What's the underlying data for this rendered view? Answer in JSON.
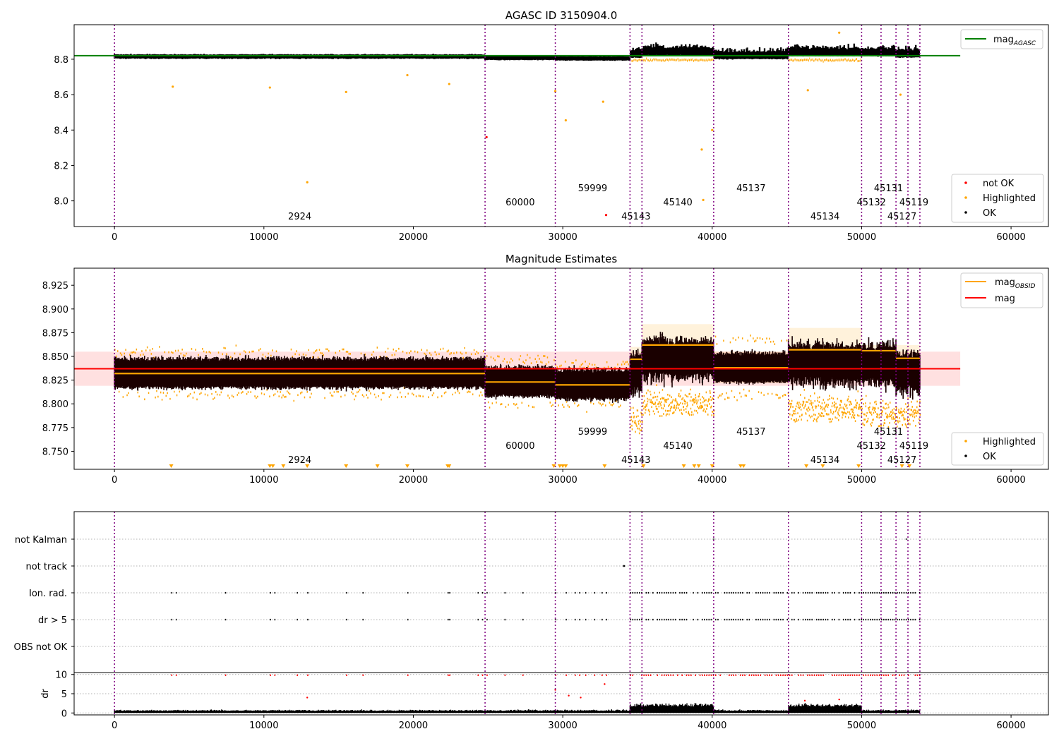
{
  "chart_data": [
    {
      "type": "scatter",
      "title": "AGASC ID 3150904.0",
      "xlim": [
        -2700,
        62500
      ],
      "ylim": [
        7.855,
        8.995
      ],
      "xticks": [
        0,
        10000,
        20000,
        30000,
        40000,
        50000,
        60000
      ],
      "yticks": [
        8.0,
        8.2,
        8.4,
        8.6,
        8.8
      ],
      "ytick_labels": [
        "8.0",
        "8.2",
        "8.4",
        "8.6",
        "8.8"
      ],
      "reference_line": {
        "label": "mag",
        "subscript": "AGASC",
        "value": 8.82,
        "x_range": [
          -2700,
          56600
        ],
        "color": "#008000"
      },
      "series": [
        {
          "name": "not OK",
          "color": "#ff0000"
        },
        {
          "name": "Highlighted",
          "color": "#ffa500"
        },
        {
          "name": "OK",
          "color": "#000000"
        }
      ],
      "legend_upper": "upper right",
      "legend_lower": "lower right",
      "highlighted_outliers": [
        [
          3900,
          8.645
        ],
        [
          10400,
          8.64
        ],
        [
          12900,
          8.105
        ],
        [
          15500,
          8.615
        ],
        [
          19600,
          8.71
        ],
        [
          22400,
          8.66
        ],
        [
          29500,
          8.62
        ],
        [
          30200,
          8.455
        ],
        [
          32700,
          8.56
        ],
        [
          39300,
          8.29
        ],
        [
          39400,
          8.005
        ],
        [
          40000,
          8.4
        ],
        [
          46400,
          8.625
        ],
        [
          48500,
          8.95
        ],
        [
          52600,
          8.6
        ]
      ],
      "not_ok_points": [
        [
          24900,
          8.36
        ],
        [
          32900,
          7.92
        ]
      ]
    },
    {
      "type": "scatter",
      "title": "Magnitude Estimates",
      "xlim": [
        -2700,
        62500
      ],
      "ylim": [
        8.731,
        8.943
      ],
      "xticks": [
        0,
        10000,
        20000,
        30000,
        40000,
        50000,
        60000
      ],
      "yticks": [
        8.75,
        8.775,
        8.8,
        8.825,
        8.85,
        8.875,
        8.9,
        8.925
      ],
      "ytick_labels": [
        "8.750",
        "8.775",
        "8.800",
        "8.825",
        "8.850",
        "8.875",
        "8.900",
        "8.925"
      ],
      "mean_mag": {
        "label": "mag",
        "value": 8.837,
        "band": [
          8.819,
          8.855
        ],
        "x_range": [
          -2700,
          56600
        ],
        "color": "#ff0000"
      },
      "obsid_mag_label": "mag",
      "obsid_mag_subscript": "OBSID",
      "series": [
        {
          "name": "Highlighted",
          "color": "#ffa500"
        },
        {
          "name": "OK",
          "color": "#000000"
        }
      ],
      "segments": [
        {
          "x0": 0,
          "x1": 24800,
          "mag": 8.832,
          "lo": 8.822,
          "hi": 8.842
        },
        {
          "x0": 24800,
          "x1": 29500,
          "mag": 8.823,
          "lo": 8.812,
          "hi": 8.835
        },
        {
          "x0": 29500,
          "x1": 34500,
          "mag": 8.82,
          "lo": 8.81,
          "hi": 8.83
        },
        {
          "x0": 34500,
          "x1": 35300,
          "mag": 8.847,
          "lo": 8.82,
          "hi": 8.86
        },
        {
          "x0": 35300,
          "x1": 40100,
          "mag": 8.862,
          "lo": 8.84,
          "hi": 8.884
        },
        {
          "x0": 40100,
          "x1": 45100,
          "mag": 8.838,
          "lo": 8.822,
          "hi": 8.855
        },
        {
          "x0": 45100,
          "x1": 50000,
          "mag": 8.857,
          "lo": 8.835,
          "hi": 8.88
        },
        {
          "x0": 50000,
          "x1": 52300,
          "mag": 8.856,
          "lo": 8.83,
          "hi": 8.862
        },
        {
          "x0": 52300,
          "x1": 53900,
          "mag": 8.848,
          "lo": 8.83,
          "hi": 8.862
        }
      ],
      "clipped_markers_x": [
        3800,
        10400,
        10600,
        11300,
        12900,
        15500,
        17600,
        19600,
        22300,
        22400,
        29400,
        29800,
        30000,
        30200,
        32800,
        35400,
        38100,
        38800,
        39100,
        40000,
        41900,
        42100,
        46300,
        47400,
        49800,
        52700,
        53200
      ]
    },
    {
      "type": "scatter",
      "title": "",
      "xlim": [
        -2700,
        62500
      ],
      "flag_rows": [
        "not Kalman",
        "not track",
        "Ion. rad.",
        "dr > 5",
        "OBS not OK"
      ],
      "dr_ylabel": "dr",
      "dr_ylim": [
        -0.5,
        10.5
      ],
      "dr_yticks": [
        0,
        5,
        10
      ],
      "xticks": [
        0,
        10000,
        20000,
        30000,
        40000,
        50000,
        60000
      ],
      "flagged_x": [
        3800,
        4100,
        7400,
        10400,
        10700,
        12200,
        12900,
        15500,
        16600,
        19600,
        22300,
        22400,
        24300,
        24600,
        24900,
        26100,
        27300,
        29500,
        30200,
        30800,
        31100,
        31500,
        32100,
        32600,
        32900
      ]
    }
  ],
  "obsids": [
    {
      "id": "2924",
      "start": 0
    },
    {
      "id": "60000",
      "start": 24800
    },
    {
      "id": "59999",
      "start": 29500
    },
    {
      "id": "45143",
      "start": 34500
    },
    {
      "id": "45140",
      "start": 35300
    },
    {
      "id": "45137",
      "start": 40100
    },
    {
      "id": "45134",
      "start": 45100
    },
    {
      "id": "45132",
      "start": 50000
    },
    {
      "id": "45131",
      "start": 51300
    },
    {
      "id": "45127",
      "start": 52300
    },
    {
      "id": "45119",
      "start": 53100
    }
  ],
  "data_end": 53900,
  "colors": {
    "obsid_line": "#800080",
    "ok": "#000000",
    "highlighted": "#ffa500",
    "not_ok": "#ff0000",
    "agasc_line": "#008000",
    "mean_line": "#ff0000",
    "band": "#ffe0e0",
    "grid": "#b0b0b0"
  }
}
